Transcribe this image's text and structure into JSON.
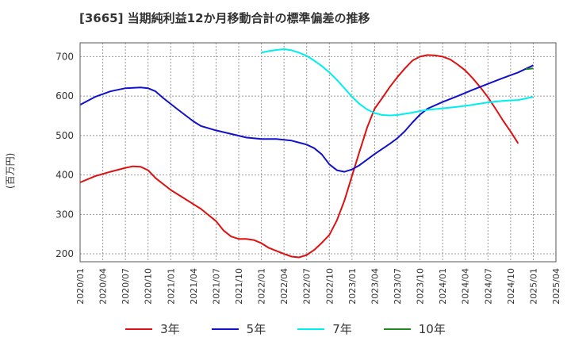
{
  "chart_data": {
    "type": "line",
    "title": "[3665]  当期純利益12か月移動合計の標準偏差の推移",
    "ylabel": "(百万円)",
    "xlabel": "",
    "ylim": [
      180,
      735
    ],
    "yticks": [
      200,
      300,
      400,
      500,
      600,
      700
    ],
    "xlim": [
      "2020/01",
      "2025/04"
    ],
    "xticks": [
      "2020/01",
      "2020/04",
      "2020/07",
      "2020/10",
      "2021/01",
      "2021/04",
      "2021/07",
      "2021/10",
      "2022/01",
      "2022/04",
      "2022/07",
      "2022/10",
      "2023/01",
      "2023/04",
      "2023/07",
      "2023/10",
      "2024/01",
      "2024/04",
      "2024/07",
      "2024/10",
      "2025/01",
      "2025/04"
    ],
    "grid": true,
    "legend_position": "bottom",
    "series": [
      {
        "name": "3年",
        "color": "#dd1111",
        "points": [
          [
            "2020/01",
            381
          ],
          [
            "2020/03",
            397
          ],
          [
            "2020/05",
            408
          ],
          [
            "2020/07",
            418
          ],
          [
            "2020/08",
            422
          ],
          [
            "2020/09",
            421
          ],
          [
            "2020/10",
            412
          ],
          [
            "2020/11",
            392
          ],
          [
            "2021/01",
            362
          ],
          [
            "2021/03",
            338
          ],
          [
            "2021/05",
            314
          ],
          [
            "2021/07",
            283
          ],
          [
            "2021/08",
            259
          ],
          [
            "2021/09",
            244
          ],
          [
            "2021/10",
            238
          ],
          [
            "2021/11",
            238
          ],
          [
            "2021/12",
            235
          ],
          [
            "2022/01",
            227
          ],
          [
            "2022/02",
            215
          ],
          [
            "2022/04",
            200
          ],
          [
            "2022/05",
            193
          ],
          [
            "2022/06",
            191
          ],
          [
            "2022/07",
            197
          ],
          [
            "2022/08",
            210
          ],
          [
            "2022/09",
            228
          ],
          [
            "2022/10",
            248
          ],
          [
            "2022/11",
            285
          ],
          [
            "2022/12",
            335
          ],
          [
            "2023/01",
            398
          ],
          [
            "2023/02",
            460
          ],
          [
            "2023/03",
            520
          ],
          [
            "2023/04",
            568
          ],
          [
            "2023/05",
            595
          ],
          [
            "2023/06",
            623
          ],
          [
            "2023/07",
            648
          ],
          [
            "2023/08",
            670
          ],
          [
            "2023/09",
            690
          ],
          [
            "2023/10",
            700
          ],
          [
            "2023/11",
            704
          ],
          [
            "2023/12",
            703
          ],
          [
            "2024/01",
            700
          ],
          [
            "2024/02",
            693
          ],
          [
            "2024/03",
            680
          ],
          [
            "2024/04",
            665
          ],
          [
            "2024/05",
            645
          ],
          [
            "2024/06",
            622
          ],
          [
            "2024/07",
            597
          ],
          [
            "2024/08",
            568
          ],
          [
            "2024/09",
            538
          ],
          [
            "2024/10",
            510
          ],
          [
            "2024/11",
            480
          ]
        ]
      },
      {
        "name": "5年",
        "color": "#1111cc",
        "points": [
          [
            "2020/01",
            578
          ],
          [
            "2020/03",
            598
          ],
          [
            "2020/05",
            612
          ],
          [
            "2020/07",
            620
          ],
          [
            "2020/09",
            622
          ],
          [
            "2020/10",
            620
          ],
          [
            "2020/11",
            612
          ],
          [
            "2020/12",
            595
          ],
          [
            "2021/02",
            565
          ],
          [
            "2021/04",
            536
          ],
          [
            "2021/05",
            524
          ],
          [
            "2021/07",
            513
          ],
          [
            "2021/09",
            504
          ],
          [
            "2021/11",
            495
          ],
          [
            "2022/01",
            491
          ],
          [
            "2022/03",
            491
          ],
          [
            "2022/05",
            487
          ],
          [
            "2022/07",
            477
          ],
          [
            "2022/08",
            468
          ],
          [
            "2022/09",
            452
          ],
          [
            "2022/10",
            427
          ],
          [
            "2022/11",
            412
          ],
          [
            "2022/12",
            408
          ],
          [
            "2023/01",
            414
          ],
          [
            "2023/02",
            425
          ],
          [
            "2023/04",
            453
          ],
          [
            "2023/06",
            479
          ],
          [
            "2023/07",
            493
          ],
          [
            "2023/08",
            511
          ],
          [
            "2023/09",
            533
          ],
          [
            "2023/10",
            553
          ],
          [
            "2023/11",
            568
          ],
          [
            "2024/01",
            585
          ],
          [
            "2024/03",
            600
          ],
          [
            "2024/05",
            616
          ],
          [
            "2024/07",
            631
          ],
          [
            "2024/09",
            646
          ],
          [
            "2024/11",
            660
          ],
          [
            "2025/01",
            678
          ]
        ]
      },
      {
        "name": "7年",
        "color": "#00eeee",
        "points": [
          [
            "2022/01",
            710
          ],
          [
            "2022/02",
            714
          ],
          [
            "2022/03",
            717
          ],
          [
            "2022/04",
            719
          ],
          [
            "2022/05",
            716
          ],
          [
            "2022/06",
            710
          ],
          [
            "2022/07",
            702
          ],
          [
            "2022/08",
            690
          ],
          [
            "2022/09",
            676
          ],
          [
            "2022/10",
            660
          ],
          [
            "2022/11",
            641
          ],
          [
            "2022/12",
            620
          ],
          [
            "2023/01",
            598
          ],
          [
            "2023/02",
            580
          ],
          [
            "2023/03",
            566
          ],
          [
            "2023/04",
            557
          ],
          [
            "2023/05",
            552
          ],
          [
            "2023/06",
            551
          ],
          [
            "2023/07",
            552
          ],
          [
            "2023/08",
            555
          ],
          [
            "2023/09",
            558
          ],
          [
            "2023/10",
            562
          ],
          [
            "2023/11",
            565
          ],
          [
            "2024/01",
            569
          ],
          [
            "2024/03",
            573
          ],
          [
            "2024/05",
            578
          ],
          [
            "2024/07",
            584
          ],
          [
            "2024/09",
            588
          ],
          [
            "2024/11",
            590
          ],
          [
            "2025/01",
            598
          ]
        ]
      },
      {
        "name": "10年",
        "color": "#228822",
        "points": [
          [
            "2024/12",
            668
          ],
          [
            "2025/01",
            670
          ]
        ]
      }
    ]
  }
}
